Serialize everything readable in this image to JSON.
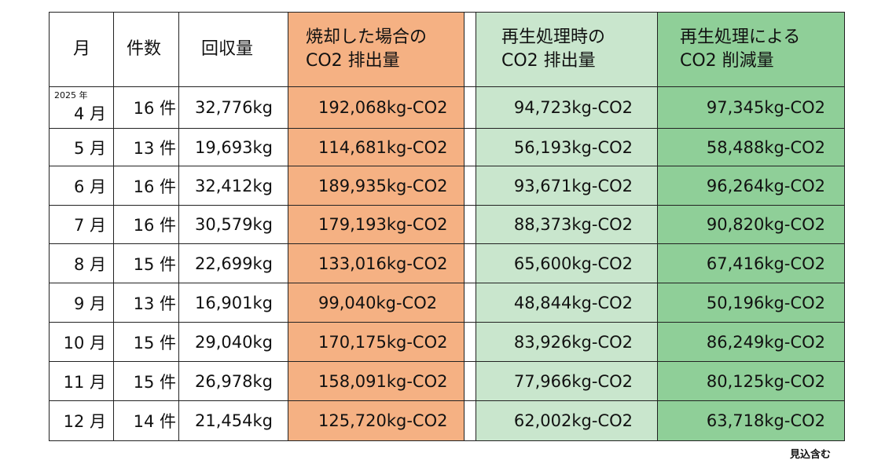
{
  "table": {
    "header": [
      [
        "月"
      ],
      [
        "件数"
      ],
      [
        "回収量"
      ],
      [
        "焼却した場合の",
        "CO2 排出量"
      ],
      [],
      [
        "再生処理時の",
        "CO2 排出量"
      ],
      [
        "再生処理による",
        "CO2 削減量"
      ]
    ],
    "rows": [
      {
        "year": "2025 年",
        "month": "4 月",
        "count": "16 件",
        "amount": "32,776kg",
        "incineration": "192,068kg-CO2",
        "recycling": "94,723kg-CO2",
        "reduction": "97,345kg-CO2"
      },
      {
        "month": "5 月",
        "count": "13 件",
        "amount": "19,693kg",
        "incineration": "114,681kg-CO2",
        "recycling": "56,193kg-CO2",
        "reduction": "58,488kg-CO2"
      },
      {
        "month": "6 月",
        "count": "16 件",
        "amount": "32,412kg",
        "incineration": "189,935kg-CO2",
        "recycling": "93,671kg-CO2",
        "reduction": "96,264kg-CO2"
      },
      {
        "month": "7 月",
        "count": "16 件",
        "amount": "30,579kg",
        "incineration": "179,193kg-CO2",
        "recycling": "88,373kg-CO2",
        "reduction": "90,820kg-CO2"
      },
      {
        "month": "8 月",
        "count": "15 件",
        "amount": "22,699kg",
        "incineration": "133,016kg-CO2",
        "recycling": "65,600kg-CO2",
        "reduction": "67,416kg-CO2"
      },
      {
        "month": "9 月",
        "count": "13 件",
        "amount": "16,901kg",
        "incineration": "99,040kg-CO2",
        "recycling": "48,844kg-CO2",
        "reduction": "50,196kg-CO2"
      },
      {
        "month": "10 月",
        "count": "15 件",
        "amount": "29,040kg",
        "incineration": "170,175kg-CO2",
        "recycling": "83,926kg-CO2",
        "reduction": "86,249kg-CO2"
      },
      {
        "month": "11 月",
        "count": "15 件",
        "amount": "26,978kg",
        "incineration": "158,091kg-CO2",
        "recycling": "77,966kg-CO2",
        "reduction": "80,125kg-CO2"
      },
      {
        "month": "12 月",
        "count": "14 件",
        "amount": "21,454kg",
        "incineration": "125,720kg-CO2",
        "recycling": "62,002kg-CO2",
        "reduction": "63,718kg-CO2"
      }
    ],
    "note": "見込含む"
  }
}
